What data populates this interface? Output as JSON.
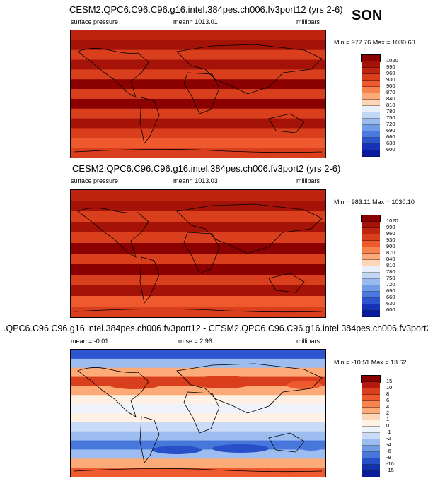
{
  "season": "SON",
  "panels": [
    {
      "title": "CESM2.QPC6.C96.C96.g16.intel.384pes.ch006.fv3port12 (yrs 2-6)",
      "variable": "surface pressure",
      "mean": "mean= 1013.01",
      "units": "millibars",
      "minmax": "Min = 977.76 Max = 1030.60"
    },
    {
      "title": "CESM2.QPC6.C96.C96.g16.intel.384pes.ch006.fv3port2 (yrs 2-6)",
      "variable": "surface pressure",
      "mean": "mean= 1013.03",
      "units": "millibars",
      "minmax": "Min = 983.11 Max = 1030.10"
    },
    {
      "title": ".QPC6.C96.C96.g16.intel.384pes.ch006.fv3port12 - CESM2.QPC6.C96.C96.g16.intel.384pes.ch006.fv3port2",
      "mean": "mean =  -0.01",
      "rmse": "rmse =   2.96",
      "units": "millibars",
      "minmax": "Min = -10.51 Max = 13.62"
    }
  ],
  "colorbar_abs": {
    "labels": [
      "1020",
      "990",
      "960",
      "930",
      "900",
      "870",
      "840",
      "810",
      "780",
      "750",
      "720",
      "690",
      "660",
      "630",
      "600"
    ],
    "colors": [
      "#8b0000",
      "#a51208",
      "#bf2410",
      "#d93f1c",
      "#ee5a2e",
      "#f7844f",
      "#fcab78",
      "#fdd6b8",
      "#eaf0fb",
      "#c2d6f6",
      "#99bbf0",
      "#6f9be8",
      "#4b79df",
      "#2c55cf",
      "#1633b8",
      "#0a1a9a"
    ]
  },
  "colorbar_diff": {
    "labels": [
      "15",
      "10",
      "8",
      "6",
      "4",
      "2",
      "1",
      "0",
      "-1",
      "-2",
      "-4",
      "-6",
      "-8",
      "-10",
      "-15"
    ],
    "colors": [
      "#8b0000",
      "#b31a0c",
      "#d93f1c",
      "#ee5a2e",
      "#f7844f",
      "#fcab78",
      "#fdd6b8",
      "#fff1e4",
      "#eef3fc",
      "#c9dbf6",
      "#9dbdf0",
      "#709ce7",
      "#4877dc",
      "#2750c8",
      "#1330ad",
      "#0a1a9a"
    ]
  },
  "maps": {
    "map1_bands": [
      "#bf2410",
      "#a51208",
      "#d93f1c",
      "#a51208",
      "#d93f1c",
      "#8b0000",
      "#d93f1c",
      "#8b0000",
      "#d93f1c",
      "#a51208",
      "#d93f1c",
      "#ee5a2e",
      "#d93f1c"
    ],
    "map2_bands": [
      "#bf2410",
      "#a51208",
      "#d93f1c",
      "#a51208",
      "#d93f1c",
      "#8b0000",
      "#d93f1c",
      "#8b0000",
      "#d93f1c",
      "#a51208",
      "#ee5a2e",
      "#d93f1c"
    ],
    "diff_bands": [
      "#2c55cf",
      "#9dbdf0",
      "#fcab78",
      "#d93f1c",
      "#fcab78",
      "#fff1e4",
      "#eef3fc",
      "#fff1e4",
      "#c9dbf6",
      "#9dbdf0",
      "#4877dc",
      "#9dbdf0",
      "#fcab78",
      "#ee5a2e"
    ]
  }
}
